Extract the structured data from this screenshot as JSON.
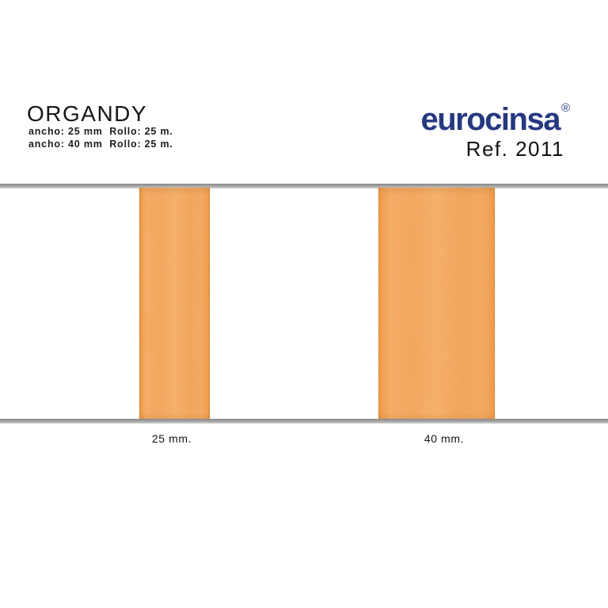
{
  "header": {
    "title": "ORGANDY",
    "specs": [
      "ancho: 25 mm  Rollo: 25 m.",
      "ancho: 40 mm  Rollo: 25 m."
    ],
    "brand": {
      "name": "eurocinsa",
      "registered": "®",
      "color": "#263880"
    },
    "ref": "Ref. 2011"
  },
  "samples": {
    "rail_color": "#a6a6a6",
    "ribbon_color": "#f3a65a",
    "ribbon_edge_color": "#dd7a24",
    "items": [
      {
        "label": "25 mm."
      },
      {
        "label": "40 mm."
      }
    ]
  }
}
